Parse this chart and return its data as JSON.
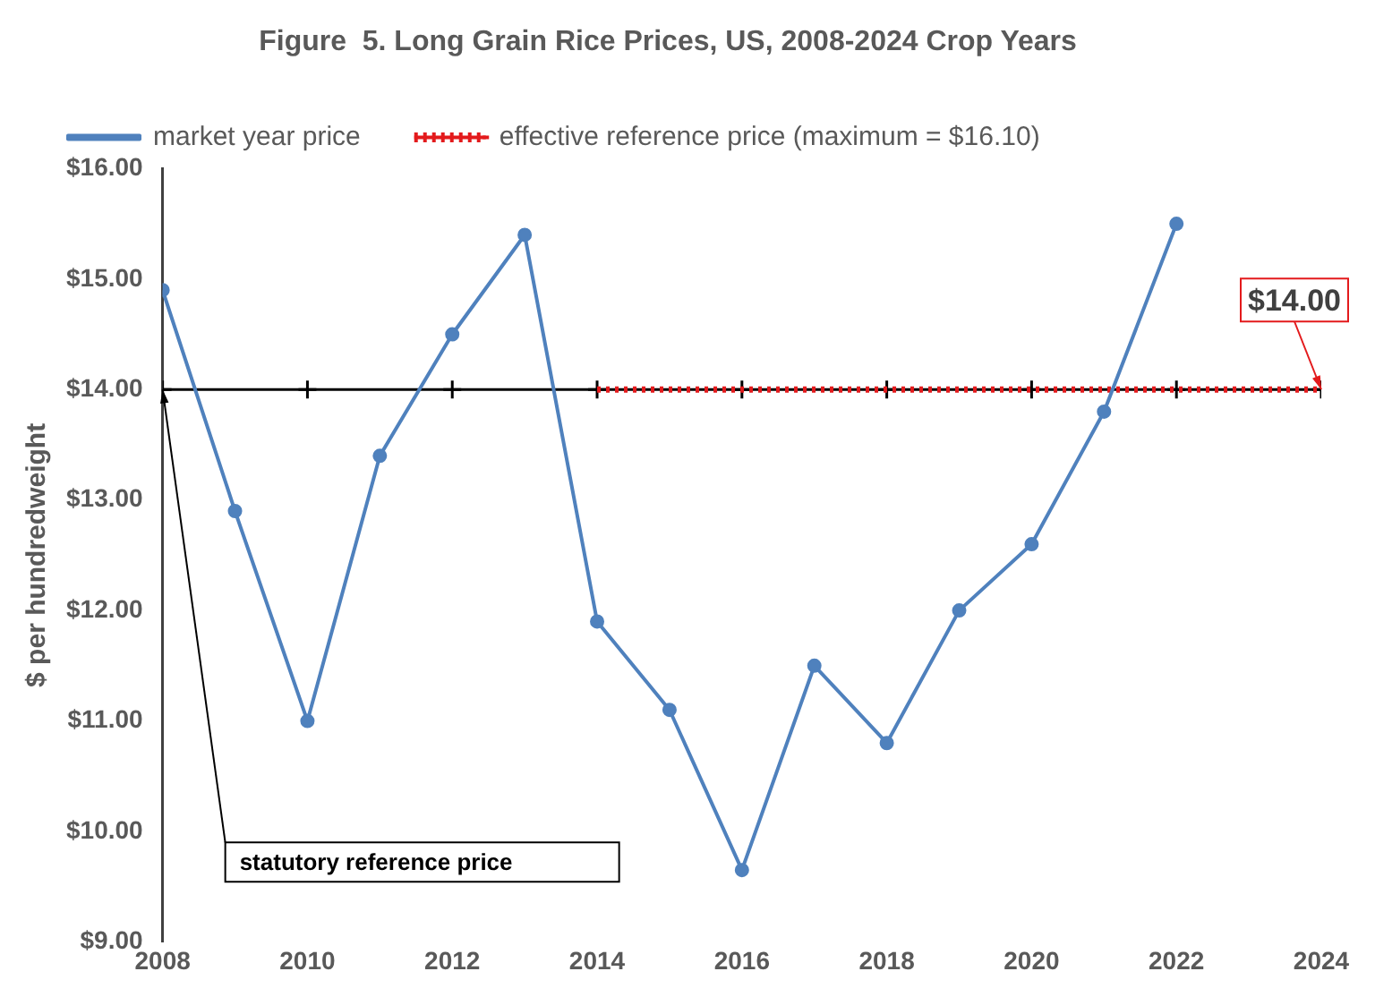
{
  "chart_data": {
    "type": "line",
    "title": "Figure  5. Long Grain Rice Prices, US, 2008-2024 Crop Years",
    "ylabel": "$ per hundredweight",
    "x": [
      2008,
      2009,
      2010,
      2011,
      2012,
      2013,
      2014,
      2015,
      2016,
      2017,
      2018,
      2019,
      2020,
      2021,
      2022
    ],
    "series": [
      {
        "name": "market year price",
        "color": "#4f81bd",
        "values": [
          14.9,
          12.9,
          11.0,
          13.4,
          14.5,
          15.4,
          11.9,
          11.1,
          9.65,
          11.5,
          10.8,
          12.0,
          12.6,
          13.8,
          15.5
        ],
        "marker": "circle"
      },
      {
        "name": "effective reference price (maximum = $16.10)",
        "color": "#e31a1c",
        "x": [
          2014,
          2016,
          2018,
          2020,
          2022,
          2024
        ],
        "values": [
          14,
          14,
          14,
          14,
          14,
          14
        ],
        "marker": "none",
        "line_style": "dotted"
      },
      {
        "color": "#000000",
        "x": [
          2008,
          2010,
          2012,
          2014,
          2016,
          2018,
          2020,
          2022,
          2024
        ],
        "values": [
          14,
          14,
          14,
          14,
          14,
          14,
          14,
          14,
          14
        ],
        "marker": "cross"
      }
    ],
    "xlim": [
      2008,
      2024
    ],
    "xticks": [
      2008,
      2010,
      2012,
      2014,
      2016,
      2018,
      2020,
      2022,
      2024
    ],
    "ylim": [
      9,
      16
    ],
    "yticks": [
      {
        "value": 9,
        "label": "$9.00"
      },
      {
        "value": 10,
        "label": "$10.00"
      },
      {
        "value": 11,
        "label": "$11.00"
      },
      {
        "value": 12,
        "label": "$12.00"
      },
      {
        "value": 13,
        "label": "$13.00"
      },
      {
        "value": 14,
        "label": "$14.00"
      },
      {
        "value": 15,
        "label": "$15.00"
      },
      {
        "value": 16,
        "label": "$16.00"
      }
    ],
    "annotations": [
      {
        "text": "statutory reference price",
        "x": 2008,
        "y": 14
      },
      {
        "text": "$14.00",
        "x": 2024,
        "y": 14
      }
    ],
    "legend": "top",
    "grid": false
  }
}
